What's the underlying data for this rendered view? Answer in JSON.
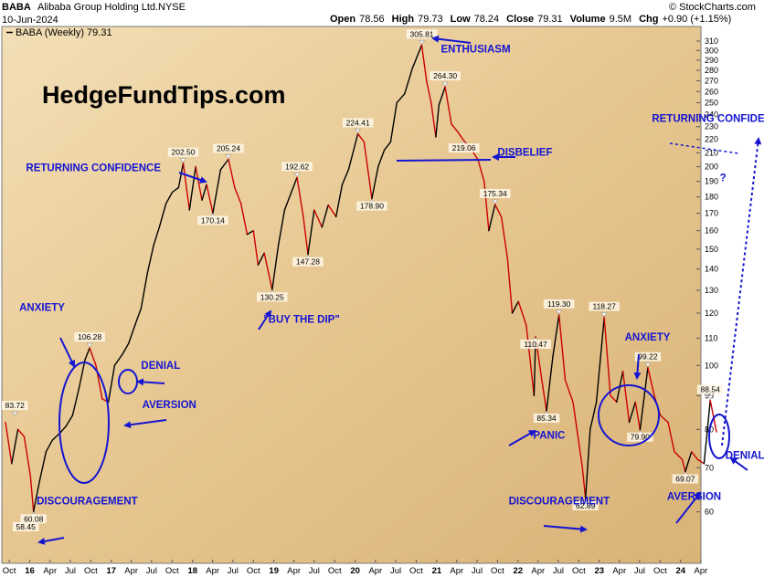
{
  "header": {
    "symbol": "BABA",
    "company": "Alibaba Group Holding Ltd.",
    "exchange": "NYSE",
    "date": "10-Jun-2024",
    "watermark": "© StockCharts.com",
    "ohlc": [
      {
        "label": "Open",
        "value": "78.56"
      },
      {
        "label": "High",
        "value": "79.73"
      },
      {
        "label": "Low",
        "value": "78.24"
      },
      {
        "label": "Close",
        "value": "79.31"
      },
      {
        "label": "Volume",
        "value": "9.5M"
      },
      {
        "label": "Chg",
        "value": "+0.90 (+1.15%)"
      }
    ]
  },
  "legend": "BABA (Weekly) 79.31",
  "brand": "HedgeFundTips.com",
  "colors": {
    "bg_light": "#f3dfb6",
    "bg_dark": "#d9b377",
    "up": "#000000",
    "down": "#cc0000",
    "annotation": "#1515d0"
  },
  "chart_data": {
    "type": "line",
    "scale": "log",
    "ylim": [
      55,
      315
    ],
    "y_ticks": [
      60,
      70,
      80,
      90,
      100,
      110,
      120,
      130,
      140,
      150,
      160,
      170,
      180,
      190,
      200,
      210,
      220,
      230,
      240,
      250,
      260,
      270,
      280,
      290,
      300,
      310
    ],
    "x_range": [
      "2015-09-14",
      "2024-06-10"
    ],
    "x_ticks": [
      {
        "label": "Oct",
        "date": "2015-10-01"
      },
      {
        "label": "16",
        "date": "2016-01-01",
        "year": true
      },
      {
        "label": "Apr",
        "date": "2016-04-01"
      },
      {
        "label": "Jul",
        "date": "2016-07-01"
      },
      {
        "label": "Oct",
        "date": "2016-10-01"
      },
      {
        "label": "17",
        "date": "2017-01-01",
        "year": true
      },
      {
        "label": "Apr",
        "date": "2017-04-01"
      },
      {
        "label": "Jul",
        "date": "2017-07-01"
      },
      {
        "label": "Oct",
        "date": "2017-10-01"
      },
      {
        "label": "18",
        "date": "2018-01-01",
        "year": true
      },
      {
        "label": "Apr",
        "date": "2018-04-01"
      },
      {
        "label": "Jul",
        "date": "2018-07-01"
      },
      {
        "label": "Oct",
        "date": "2018-10-01"
      },
      {
        "label": "19",
        "date": "2019-01-01",
        "year": true
      },
      {
        "label": "Apr",
        "date": "2019-04-01"
      },
      {
        "label": "Jul",
        "date": "2019-07-01"
      },
      {
        "label": "Oct",
        "date": "2019-10-01"
      },
      {
        "label": "20",
        "date": "2020-01-01",
        "year": true
      },
      {
        "label": "Apr",
        "date": "2020-04-01"
      },
      {
        "label": "Jul",
        "date": "2020-07-01"
      },
      {
        "label": "Oct",
        "date": "2020-10-01"
      },
      {
        "label": "21",
        "date": "2021-01-01",
        "year": true
      },
      {
        "label": "Apr",
        "date": "2021-04-01"
      },
      {
        "label": "Jul",
        "date": "2021-07-01"
      },
      {
        "label": "Oct",
        "date": "2021-10-01"
      },
      {
        "label": "22",
        "date": "2022-01-01",
        "year": true
      },
      {
        "label": "Apr",
        "date": "2022-04-01"
      },
      {
        "label": "Jul",
        "date": "2022-07-01"
      },
      {
        "label": "Oct",
        "date": "2022-10-01"
      },
      {
        "label": "23",
        "date": "2023-01-01",
        "year": true
      },
      {
        "label": "Apr",
        "date": "2023-04-01"
      },
      {
        "label": "Jul",
        "date": "2023-07-01"
      },
      {
        "label": "Oct",
        "date": "2023-10-01"
      },
      {
        "label": "24",
        "date": "2024-01-01",
        "year": true
      },
      {
        "label": "Apr",
        "date": "2024-04-01"
      }
    ],
    "series": [
      {
        "points": [
          [
            "2015-09-14",
            82
          ],
          [
            "2015-10-12",
            71
          ],
          [
            "2015-11-09",
            80
          ],
          [
            "2015-12-07",
            78
          ],
          [
            "2016-01-04",
            68
          ],
          [
            "2016-01-18",
            60.08
          ],
          [
            "2016-02-15",
            67
          ],
          [
            "2016-03-14",
            74
          ],
          [
            "2016-04-11",
            77
          ],
          [
            "2016-05-16",
            79
          ],
          [
            "2016-06-13",
            81
          ],
          [
            "2016-07-11",
            84
          ],
          [
            "2016-08-08",
            92
          ],
          [
            "2016-09-05",
            102
          ],
          [
            "2016-09-26",
            106.28
          ],
          [
            "2016-10-24",
            100
          ],
          [
            "2016-11-21",
            89
          ],
          [
            "2016-12-19",
            88
          ],
          [
            "2017-01-16",
            100
          ],
          [
            "2017-02-20",
            104
          ],
          [
            "2017-03-20",
            108
          ],
          [
            "2017-04-17",
            115
          ],
          [
            "2017-05-15",
            122
          ],
          [
            "2017-06-12",
            138
          ],
          [
            "2017-07-10",
            152
          ],
          [
            "2017-08-07",
            163
          ],
          [
            "2017-09-04",
            176
          ],
          [
            "2017-10-02",
            183
          ],
          [
            "2017-10-30",
            186
          ],
          [
            "2017-11-20",
            202.5
          ],
          [
            "2017-12-18",
            172
          ],
          [
            "2018-01-15",
            200
          ],
          [
            "2018-02-12",
            178
          ],
          [
            "2018-03-05",
            188
          ],
          [
            "2018-04-02",
            170.14
          ],
          [
            "2018-05-07",
            198
          ],
          [
            "2018-06-11",
            205.24
          ],
          [
            "2018-07-09",
            186
          ],
          [
            "2018-08-06",
            176
          ],
          [
            "2018-09-03",
            158
          ],
          [
            "2018-10-01",
            160
          ],
          [
            "2018-10-22",
            142
          ],
          [
            "2018-11-19",
            148
          ],
          [
            "2018-12-24",
            130.25
          ],
          [
            "2019-01-21",
            152
          ],
          [
            "2019-02-18",
            172
          ],
          [
            "2019-03-18",
            182
          ],
          [
            "2019-04-15",
            192.62
          ],
          [
            "2019-05-13",
            168
          ],
          [
            "2019-06-03",
            147.28
          ],
          [
            "2019-07-01",
            172
          ],
          [
            "2019-08-05",
            162
          ],
          [
            "2019-09-02",
            175
          ],
          [
            "2019-10-07",
            168
          ],
          [
            "2019-11-04",
            188
          ],
          [
            "2019-12-02",
            198
          ],
          [
            "2020-01-13",
            224.41
          ],
          [
            "2020-02-10",
            218
          ],
          [
            "2020-03-16",
            178.9
          ],
          [
            "2020-04-13",
            200
          ],
          [
            "2020-05-11",
            212
          ],
          [
            "2020-06-08",
            218
          ],
          [
            "2020-07-06",
            250
          ],
          [
            "2020-08-10",
            258
          ],
          [
            "2020-09-14",
            282
          ],
          [
            "2020-10-26",
            305.81
          ],
          [
            "2020-11-16",
            270
          ],
          [
            "2020-12-07",
            250
          ],
          [
            "2020-12-28",
            222
          ],
          [
            "2021-01-11",
            248
          ],
          [
            "2021-02-08",
            264.3
          ],
          [
            "2021-03-08",
            232
          ],
          [
            "2021-04-05",
            226
          ],
          [
            "2021-05-03",
            219.06
          ],
          [
            "2021-06-07",
            212
          ],
          [
            "2021-07-05",
            205
          ],
          [
            "2021-08-02",
            190
          ],
          [
            "2021-08-23",
            160
          ],
          [
            "2021-09-20",
            175.34
          ],
          [
            "2021-10-18",
            168
          ],
          [
            "2021-11-15",
            145
          ],
          [
            "2021-12-06",
            120
          ],
          [
            "2022-01-03",
            125
          ],
          [
            "2022-02-07",
            115
          ],
          [
            "2022-03-14",
            90
          ],
          [
            "2022-03-21",
            110.47
          ],
          [
            "2022-04-18",
            95
          ],
          [
            "2022-05-09",
            85.34
          ],
          [
            "2022-06-06",
            103
          ],
          [
            "2022-07-04",
            119.3
          ],
          [
            "2022-08-01",
            95
          ],
          [
            "2022-09-05",
            88
          ],
          [
            "2022-10-17",
            70
          ],
          [
            "2022-10-31",
            62.89
          ],
          [
            "2022-11-21",
            80
          ],
          [
            "2022-12-19",
            88
          ],
          [
            "2023-01-23",
            118.27
          ],
          [
            "2023-02-20",
            90
          ],
          [
            "2023-03-20",
            88
          ],
          [
            "2023-04-17",
            98
          ],
          [
            "2023-05-15",
            82
          ],
          [
            "2023-06-12",
            88
          ],
          [
            "2023-07-03",
            79.9
          ],
          [
            "2023-08-07",
            99.22
          ],
          [
            "2023-09-05",
            90
          ],
          [
            "2023-10-02",
            84
          ],
          [
            "2023-11-06",
            82
          ],
          [
            "2023-12-04",
            74
          ],
          [
            "2024-01-08",
            72
          ],
          [
            "2024-01-22",
            69.07
          ],
          [
            "2024-02-19",
            74
          ],
          [
            "2024-03-18",
            72
          ],
          [
            "2024-04-15",
            71
          ],
          [
            "2024-05-13",
            88.54
          ],
          [
            "2024-06-10",
            79.31
          ]
        ]
      }
    ],
    "point_labels": [
      {
        "date": "2015-12-14",
        "value": 58.45,
        "text": "58.45",
        "pos": "below"
      },
      {
        "date": "2015-10-26",
        "value": 83.72,
        "text": "83.72",
        "pos": "above"
      },
      {
        "date": "2016-01-18",
        "value": 60.08,
        "text": "60.08",
        "pos": "below"
      },
      {
        "date": "2016-09-26",
        "value": 106.28,
        "text": "106.28",
        "pos": "above"
      },
      {
        "date": "2017-11-20",
        "value": 202.5,
        "text": "202.50",
        "pos": "above"
      },
      {
        "date": "2018-04-02",
        "value": 170.14,
        "text": "170.14",
        "pos": "below"
      },
      {
        "date": "2018-06-11",
        "value": 205.24,
        "text": "205.24",
        "pos": "above"
      },
      {
        "date": "2018-12-24",
        "value": 130.25,
        "text": "130.25",
        "pos": "below"
      },
      {
        "date": "2019-04-15",
        "value": 192.62,
        "text": "192.62",
        "pos": "above"
      },
      {
        "date": "2019-06-03",
        "value": 147.28,
        "text": "147.28",
        "pos": "below"
      },
      {
        "date": "2020-01-13",
        "value": 224.41,
        "text": "224.41",
        "pos": "above"
      },
      {
        "date": "2020-03-16",
        "value": 178.9,
        "text": "178.90",
        "pos": "below"
      },
      {
        "date": "2020-10-26",
        "value": 305.81,
        "text": "305.81",
        "pos": "above"
      },
      {
        "date": "2021-02-08",
        "value": 264.3,
        "text": "264.30",
        "pos": "above"
      },
      {
        "date": "2021-05-03",
        "value": 219.06,
        "text": "219.06",
        "pos": "below"
      },
      {
        "date": "2021-09-20",
        "value": 175.34,
        "text": "175.34",
        "pos": "above"
      },
      {
        "date": "2022-03-21",
        "value": 110.47,
        "text": "110.47",
        "pos": "below"
      },
      {
        "date": "2022-05-09",
        "value": 85.34,
        "text": "85.34",
        "pos": "below"
      },
      {
        "date": "2022-07-04",
        "value": 119.3,
        "text": "119.30",
        "pos": "above"
      },
      {
        "date": "2022-10-31",
        "value": 62.89,
        "text": "62.89",
        "pos": "below"
      },
      {
        "date": "2023-01-23",
        "value": 118.27,
        "text": "118.27",
        "pos": "above"
      },
      {
        "date": "2023-07-03",
        "value": 79.9,
        "text": "79.90",
        "pos": "below"
      },
      {
        "date": "2023-08-07",
        "value": 99.22,
        "text": "99.22",
        "pos": "above"
      },
      {
        "date": "2024-01-22",
        "value": 69.07,
        "text": "69.07",
        "pos": "below"
      },
      {
        "date": "2024-05-13",
        "value": 88.54,
        "text": "88.54",
        "pos": "above"
      }
    ],
    "annotations": [
      {
        "text": "ANXIETY",
        "date": "2015-11-15",
        "value": 121
      },
      {
        "text": "DENIAL",
        "date": "2017-05-15",
        "value": 98.8
      },
      {
        "text": "AVERSION",
        "date": "2017-05-20",
        "value": 86.2
      },
      {
        "text": "DISCOURAGEMENT",
        "date": "2016-02-01",
        "value": 61.6
      },
      {
        "text": "RETURNING CONFIDENCE",
        "date": "2015-12-15",
        "value": 197
      },
      {
        "text": "\"BUY THE DIP\"",
        "date": "2018-11-15",
        "value": 116
      },
      {
        "text": "ENTHUSIASM",
        "date": "2021-01-20",
        "value": 298
      },
      {
        "text": "DISBELIEF",
        "date": "2021-10-01",
        "value": 208
      },
      {
        "text": "PANIC",
        "date": "2022-03-10",
        "value": 77.5
      },
      {
        "text": "DISCOURAGEMENT",
        "date": "2021-11-20",
        "value": 61.6
      },
      {
        "text": "ANXIETY",
        "date": "2023-04-25",
        "value": 109
      },
      {
        "text": "AVERSION",
        "date": "2023-11-01",
        "value": 62.6
      },
      {
        "text": "DENIAL",
        "date": "2024-07-20",
        "value": 72.2
      },
      {
        "text": "RETURNING CONFIDENCE",
        "date": "2023-08-25",
        "value": 234
      },
      {
        "text": "?",
        "date": "2024-06-25",
        "value": 190
      }
    ]
  }
}
